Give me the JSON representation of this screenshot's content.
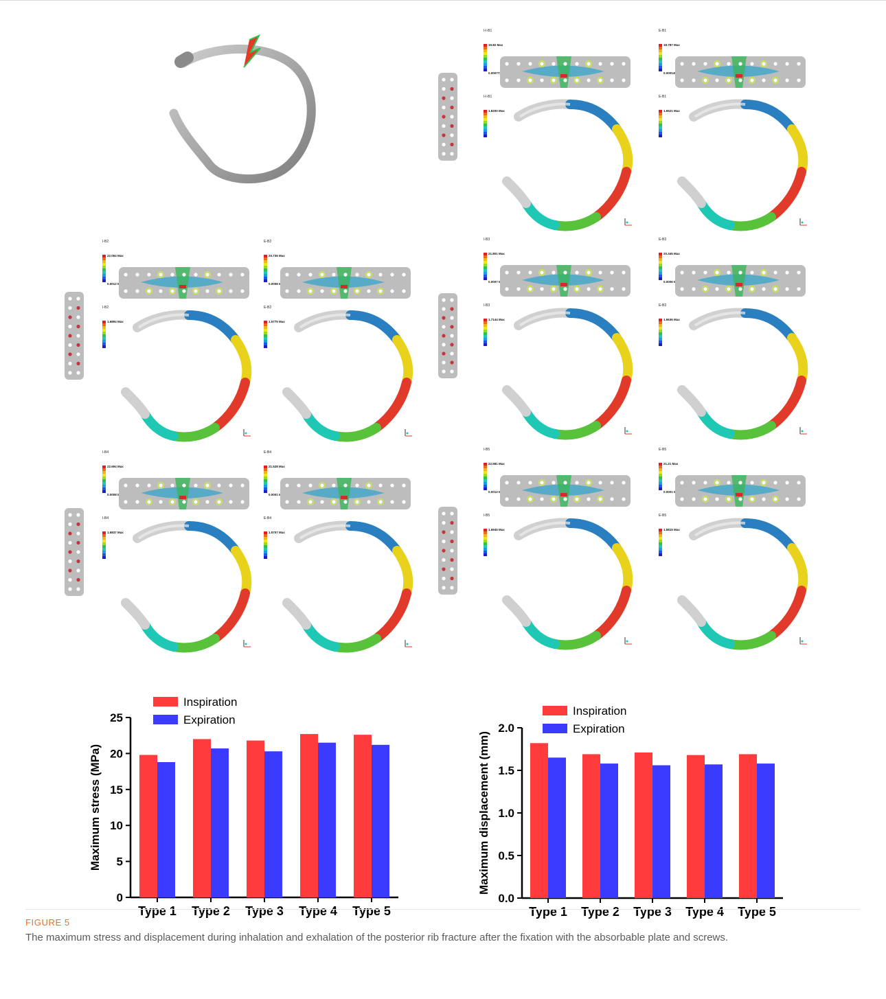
{
  "figure": {
    "label": "FIGURE 5",
    "caption": "The maximum stress and displacement during inhalation and exhalation of the posterior rib fracture after the fixation with the absorbable plate and screws."
  },
  "fea_panels": [
    {
      "stress_title": "I-I-B1",
      "stress_max": "19.82 Max",
      "stress_min": "0.000772 Min",
      "disp_title": "I-I-B1",
      "disp_max": "1.8200 Max"
    },
    {
      "stress_title": "E-B1",
      "stress_max": "18.787 Max",
      "stress_min": "0.000145 Min",
      "disp_title": "E-B1",
      "disp_max": "1.6521 Max"
    },
    {
      "stress_title": "I-B2",
      "stress_max": "22.054 Max",
      "stress_min": "0.0012 Min",
      "disp_title": "I-B2",
      "disp_max": "1.6894 Max"
    },
    {
      "stress_title": "E-B2",
      "stress_max": "20.736 Max",
      "stress_min": "0.0008 Min",
      "disp_title": "E-B2",
      "disp_max": "1.5775 Max"
    },
    {
      "stress_title": "I-B3",
      "stress_max": "21.801 Max",
      "stress_min": "0.0007 Min",
      "disp_title": "I-B3",
      "disp_max": "1.7144 Max"
    },
    {
      "stress_title": "E-B3",
      "stress_max": "20.345 Max",
      "stress_min": "0.0006 Min",
      "disp_title": "E-B3",
      "disp_max": "1.5636 Max"
    },
    {
      "stress_title": "I-B4",
      "stress_max": "22.694 Max",
      "stress_min": "0.0008 Min",
      "disp_title": "I-B4",
      "disp_max": "1.6837 Max"
    },
    {
      "stress_title": "E-B4",
      "stress_max": "21.528 Max",
      "stress_min": "0.0001 Min",
      "disp_title": "E-B4",
      "disp_max": "1.5707 Max"
    },
    {
      "stress_title": "I-B5",
      "stress_max": "22.581 Max",
      "stress_min": "0.0012 Min",
      "disp_title": "I-B5",
      "disp_max": "1.6945 Max"
    },
    {
      "stress_title": "E-B5",
      "stress_max": "21.21 Max",
      "stress_min": "0.0001 Min",
      "disp_title": "E-B5",
      "disp_max": "1.5815 Max"
    }
  ],
  "colors": {
    "inspiration": "#ff3b3b",
    "expiration": "#3b3bff",
    "bone": "#9e9e9e",
    "plate": "#bdbdbd",
    "screw": "#c8343e",
    "caption_label": "#e2732e",
    "caption_text": "#5a5a5a"
  },
  "chart_data": [
    {
      "type": "bar",
      "categories": [
        "Type 1",
        "Type 2",
        "Type 3",
        "Type 4",
        "Type 5"
      ],
      "series": [
        {
          "name": "Inspiration",
          "values": [
            19.8,
            22.0,
            21.8,
            22.7,
            22.6
          ]
        },
        {
          "name": "Expiration",
          "values": [
            18.8,
            20.7,
            20.3,
            21.5,
            21.2
          ]
        }
      ],
      "ylabel": "Maximum stress (MPa)",
      "ylim": [
        0,
        25
      ],
      "yticks": [
        "0",
        "5",
        "10",
        "15",
        "20",
        "25"
      ],
      "legend": "top-left"
    },
    {
      "type": "bar",
      "categories": [
        "Type 1",
        "Type 2",
        "Type 3",
        "Type 4",
        "Type 5"
      ],
      "series": [
        {
          "name": "Inspiration",
          "values": [
            1.82,
            1.69,
            1.71,
            1.68,
            1.69
          ]
        },
        {
          "name": "Expiration",
          "values": [
            1.65,
            1.58,
            1.56,
            1.57,
            1.58
          ]
        }
      ],
      "ylabel": "Maximum displacement (mm)",
      "ylim": [
        0,
        2
      ],
      "yticks": [
        "0.0",
        "0.5",
        "1.0",
        "1.5",
        "2.0"
      ],
      "legend": "top-left"
    }
  ]
}
